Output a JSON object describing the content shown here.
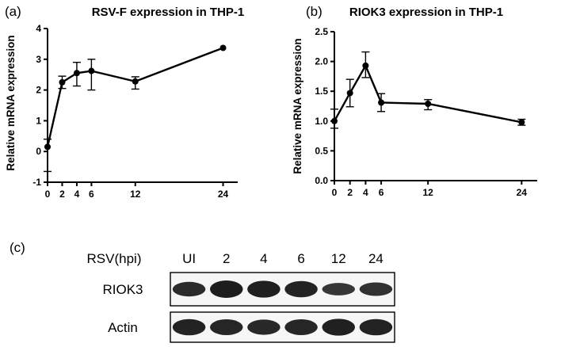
{
  "panels": {
    "a": "(a)",
    "b": "(b)",
    "c": "(c)"
  },
  "chart_data": [
    {
      "type": "line",
      "title": "RSV-F expression in THP-1",
      "xlabel": "",
      "ylabel": "Relative mRNA expression",
      "x": [
        0,
        2,
        4,
        6,
        12,
        24
      ],
      "x_ticks": [
        "0",
        "2",
        "4",
        "6",
        "12",
        "24"
      ],
      "xlim": [
        0,
        26
      ],
      "ylim": [
        -1,
        4
      ],
      "y_ticks": [
        "-1",
        "0",
        "1",
        "2",
        "3",
        "4"
      ],
      "y_tick_values": [
        -1,
        0,
        1,
        2,
        3,
        4
      ],
      "series": [
        {
          "values": [
            0.15,
            2.25,
            2.55,
            2.62,
            2.28,
            3.37
          ],
          "err_low": [
            0.8,
            0.2,
            0.42,
            0.62,
            0.25,
            0
          ],
          "err_high": [
            0.25,
            0.2,
            0.35,
            0.38,
            0.15,
            0
          ]
        }
      ],
      "grid": false
    },
    {
      "type": "line",
      "title": "RIOK3 expression in THP-1",
      "xlabel": "",
      "ylabel": "Relative mRNA expression",
      "x": [
        0,
        2,
        4,
        6,
        12,
        24
      ],
      "x_ticks": [
        "0",
        "2",
        "4",
        "6",
        "12",
        "24"
      ],
      "xlim": [
        0,
        26
      ],
      "ylim": [
        0,
        2.5
      ],
      "y_ticks": [
        "0.0",
        "0.5",
        "1.0",
        "1.5",
        "2.0",
        "2.5"
      ],
      "y_tick_values": [
        0,
        0.5,
        1.0,
        1.5,
        2.0,
        2.5
      ],
      "series": [
        {
          "values": [
            1.0,
            1.47,
            1.93,
            1.31,
            1.29,
            0.98
          ],
          "err_low": [
            0.12,
            0.23,
            0.2,
            0.15,
            0.1,
            0.05
          ],
          "err_high": [
            0.2,
            0.23,
            0.23,
            0.15,
            0.07,
            0.05
          ]
        }
      ],
      "grid": false
    }
  ],
  "blot": {
    "header_label": "RSV(hpi)",
    "lanes": [
      "UI",
      "2",
      "4",
      "6",
      "12",
      "24"
    ],
    "rows": [
      {
        "label": "RIOK3",
        "intensity": [
          0.75,
          1.0,
          0.95,
          0.9,
          0.55,
          0.65
        ]
      },
      {
        "label": "Actin",
        "intensity": [
          0.9,
          0.85,
          0.8,
          0.85,
          0.95,
          0.9
        ]
      }
    ]
  }
}
